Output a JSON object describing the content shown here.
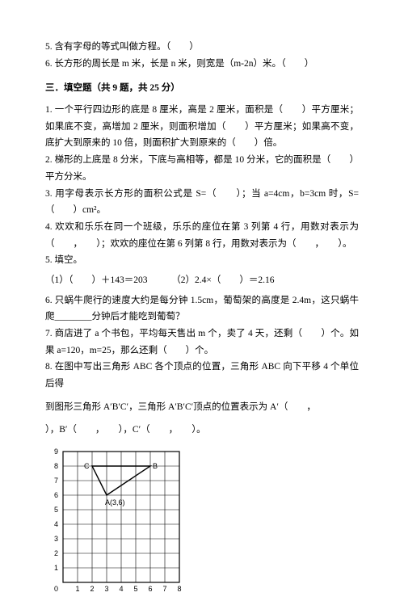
{
  "top_items": {
    "i5": "5. 含有字母的等式叫做方程。（　　）",
    "i6": "6. 长方形的周长是 m 米，长是 n 米，则宽是（m-2n）米。（　　）"
  },
  "section_title": "三．填空题（共 9 题，共 25 分）",
  "fill": {
    "q1": "1. 一个平行四边形的底是 8 厘米，高是 2 厘米，面积是（　　）平方厘米；如果底不变，高增加 2 厘米，则面积增加（　　）平方厘米；如果高不变，底扩大到原来的 10 倍，则面积扩大到原来的（　　）倍。",
    "q2a": "2. 梯形的上底是 8 分米，下底与高相等，都是 10 分米，它的面积是（　　）",
    "q2b": "平方分米。",
    "q3": "3. 用字母表示长方形的面积公式是 S=（　　）；当 a=4cm，b=3cm 时，S=（　　）cm²。",
    "q4": "4. 欢欢和乐乐在同一个班级，乐乐的座位在第 3 列第 4 行，用数对表示为（　　，　　）；欢欢的座位在第 6 列第 8 行，用数对表示为（　　，　　）。",
    "q5": "5. 填空。",
    "q5a": "（1）（　　）＋143＝203",
    "q5b": "（2）2.4×（　　）＝2.16",
    "q6": "6. 只蜗牛爬行的速度大约是每分钟 1.5cm，葡萄架的高度是 2.4m，这只蜗牛爬________分钟后才能吃到葡萄？",
    "q7": "7. 商店进了 a 个书包，平均每天售出 m 个，卖了 4 天，还剩（　　）个。如果 a=120，m=25，那么还剩（　　）个。",
    "q8a": "8. 在图中写出三角形 ABC 各个顶点的位置，三角形 ABC 向下平移 4 个单位后得",
    "q8b": "到图形三角形 A′B′C′，三角形 A′B′C′顶点的位置表示为 A′（　　，",
    "q8c": "），B′（　　，　　），C′（　　，　　）。"
  },
  "chart": {
    "grid": {
      "xmin": 0,
      "xmax": 8,
      "ymin": 0,
      "ymax": 9,
      "cell": 18
    },
    "points": {
      "A": {
        "x": 3,
        "y": 6,
        "label": "A(3,6)"
      },
      "B": {
        "x": 6,
        "y": 8,
        "label": "B"
      },
      "C": {
        "x": 2,
        "y": 8,
        "label": "C"
      }
    },
    "colors": {
      "grid": "#000000",
      "line": "#000000",
      "bg": "#ffffff"
    }
  }
}
